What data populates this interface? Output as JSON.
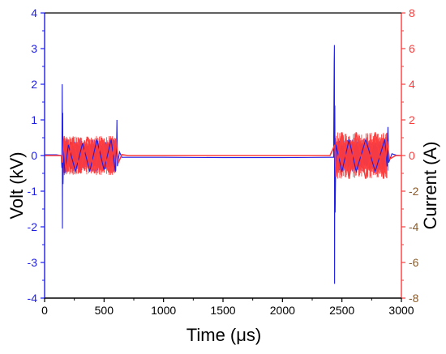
{
  "chart_data": {
    "type": "line",
    "xlabel": "Time (μs)",
    "ylabel": "Volt (kV)",
    "y2label": "Current (A)",
    "xlim": [
      0,
      3000
    ],
    "ylim": [
      -4,
      4
    ],
    "y2lim": [
      -8,
      8
    ],
    "x_ticks": [
      "0",
      "500",
      "1000",
      "1500",
      "2000",
      "2500",
      "3000"
    ],
    "y_ticks": [
      "4",
      "3",
      "2",
      "1",
      "0",
      "-1",
      "-2",
      "-3",
      "-4"
    ],
    "y2_ticks": [
      "8",
      "6",
      "4",
      "2",
      "0",
      "-2",
      "-4",
      "-6",
      "-8"
    ],
    "grid": false,
    "legend": "none",
    "colors": {
      "voltage": "#1e1ee6",
      "current": "#ff3c3c",
      "left_axis": "#1e1ee6",
      "right_axis": "#ff3c3c",
      "bottom_axis": "#000000",
      "right_ticks": "#8a5a2a"
    },
    "series": [
      {
        "role": "voltage",
        "axis": "left",
        "points": [
          [
            0,
            0.02
          ],
          [
            100,
            0.02
          ],
          [
            140,
            0.0
          ],
          [
            145,
            -0.35
          ],
          [
            148,
            2.0
          ],
          [
            150,
            -2.05
          ],
          [
            152,
            1.2
          ],
          [
            155,
            -0.8
          ],
          [
            160,
            0.2
          ],
          [
            170,
            -0.5
          ],
          [
            200,
            0.3
          ],
          [
            260,
            -0.45
          ],
          [
            320,
            0.35
          ],
          [
            380,
            -0.45
          ],
          [
            440,
            0.45
          ],
          [
            500,
            -0.4
          ],
          [
            560,
            0.45
          ],
          [
            595,
            -0.45
          ],
          [
            605,
            0.2
          ],
          [
            608,
            1.0
          ],
          [
            612,
            -0.3
          ],
          [
            630,
            0.1
          ],
          [
            650,
            -0.05
          ],
          [
            700,
            -0.05
          ],
          [
            1000,
            -0.05
          ],
          [
            1500,
            -0.06
          ],
          [
            2000,
            -0.06
          ],
          [
            2400,
            -0.05
          ],
          [
            2430,
            -0.05
          ],
          [
            2435,
            2.6
          ],
          [
            2437,
            3.1
          ],
          [
            2438,
            -3.6
          ],
          [
            2440,
            1.4
          ],
          [
            2443,
            -1.6
          ],
          [
            2450,
            0.3
          ],
          [
            2500,
            -0.45
          ],
          [
            2560,
            0.45
          ],
          [
            2620,
            -0.45
          ],
          [
            2700,
            0.45
          ],
          [
            2780,
            -0.45
          ],
          [
            2860,
            0.45
          ],
          [
            2880,
            -0.3
          ],
          [
            2887,
            0.8
          ],
          [
            2893,
            -0.2
          ],
          [
            2920,
            0.05
          ],
          [
            2960,
            0.01
          ],
          [
            3000,
            0.0
          ]
        ]
      },
      {
        "role": "current",
        "axis": "right",
        "points": [
          [
            0,
            0.0
          ],
          [
            140,
            0.0
          ],
          [
            150,
            -0.4
          ],
          [
            160,
            0.9
          ],
          [
            180,
            -0.9
          ],
          [
            240,
            1.0
          ],
          [
            300,
            -0.95
          ],
          [
            360,
            1.05
          ],
          [
            420,
            -1.0
          ],
          [
            480,
            1.0
          ],
          [
            540,
            -0.95
          ],
          [
            600,
            0.95
          ],
          [
            620,
            -0.4
          ],
          [
            650,
            0.05
          ],
          [
            700,
            0.0
          ],
          [
            1500,
            0.0
          ],
          [
            2400,
            0.0
          ],
          [
            2440,
            0.6
          ],
          [
            2450,
            -1.2
          ],
          [
            2500,
            1.3
          ],
          [
            2560,
            -1.3
          ],
          [
            2620,
            1.3
          ],
          [
            2700,
            -1.3
          ],
          [
            2780,
            1.3
          ],
          [
            2850,
            -1.3
          ],
          [
            2880,
            0.8
          ],
          [
            2900,
            -0.2
          ],
          [
            2950,
            0.0
          ],
          [
            3000,
            0.0
          ]
        ]
      }
    ],
    "noise_bands": [
      {
        "series": "voltage",
        "x_start": 150,
        "x_end": 600,
        "amplitude_kv": 0.45
      },
      {
        "series": "voltage",
        "x_start": 2440,
        "x_end": 2890,
        "amplitude_kv": 0.45
      },
      {
        "series": "current",
        "x_start": 150,
        "x_end": 600,
        "amplitude_a": 1.1
      },
      {
        "series": "current",
        "x_start": 2440,
        "x_end": 2880,
        "amplitude_a": 1.3
      }
    ]
  }
}
